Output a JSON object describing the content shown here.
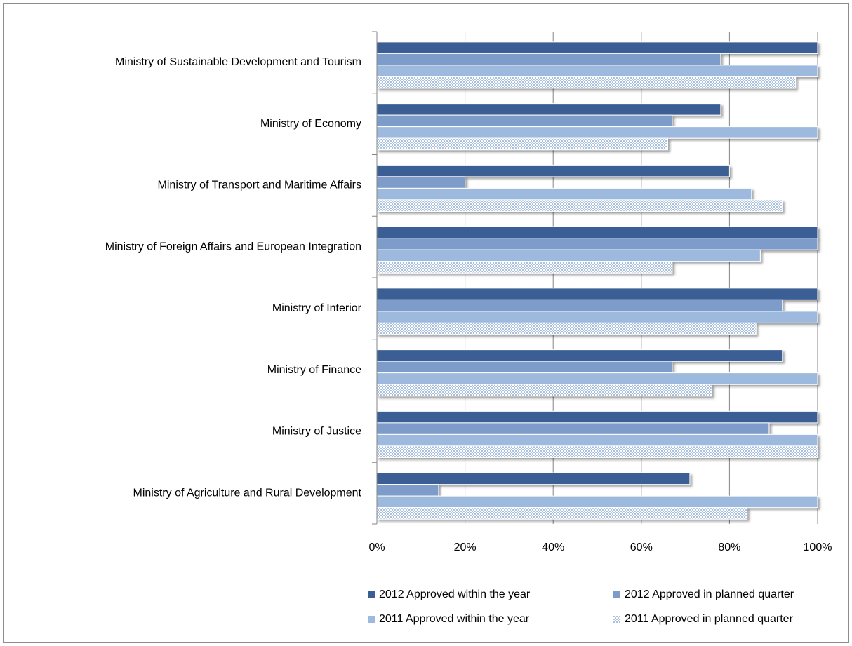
{
  "chart_data": {
    "type": "hbar",
    "categories": [
      "Ministry of Sustainable Development and Tourism",
      "Ministry of Economy",
      "Ministry of Transport and Maritime Affairs",
      "Ministry of Foreign Affairs and European Integration",
      "Ministry of Interior",
      "Ministry of Finance",
      "Ministry of Justice",
      "Ministry of Agriculture and Rural Development"
    ],
    "series": [
      {
        "name": "2012 Approved within the year",
        "color": "#3b5f94",
        "values": [
          100,
          78,
          80,
          100,
          100,
          92,
          100,
          71
        ]
      },
      {
        "name": "2012 Approved in planned quarter",
        "color": "#7d9cc9",
        "values": [
          78,
          67,
          20,
          100,
          92,
          67,
          89,
          14
        ]
      },
      {
        "name": "2011 Approved within the year",
        "color": "#9dbade",
        "values": [
          100,
          100,
          85,
          87,
          100,
          100,
          100,
          100
        ]
      },
      {
        "name": "2011 Approved in planned quarter",
        "color": "#a9c0e0",
        "hatched": true,
        "values": [
          95,
          66,
          92,
          67,
          86,
          76,
          100,
          84
        ]
      }
    ],
    "xlim": [
      0,
      100
    ],
    "xticks": [
      {
        "value": 0,
        "label": "0%"
      },
      {
        "value": 20,
        "label": "20%"
      },
      {
        "value": 40,
        "label": "40%"
      },
      {
        "value": 60,
        "label": "60%"
      },
      {
        "value": 80,
        "label": "80%"
      },
      {
        "value": 100,
        "label": "100%"
      }
    ],
    "grid": true,
    "legend": "bottom"
  }
}
